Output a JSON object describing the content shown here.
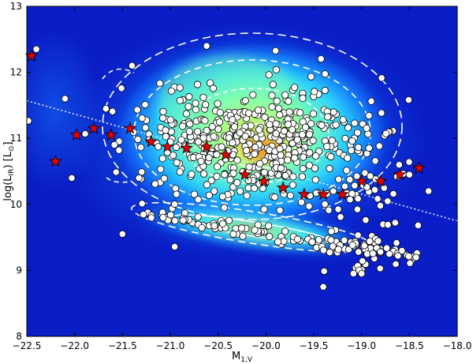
{
  "chart_data": {
    "type": "scatter",
    "title": "",
    "xlabel": "M",
    "xlabel_sub": "1,V",
    "ylabel": "log(L",
    "ylabel_sub": "IR",
    "ylabel_unit": ") [L",
    "ylabel_unit_sub": "⊙",
    "ylabel_close": "]",
    "xlim": [
      -22.5,
      -18.0
    ],
    "ylim": [
      8,
      13
    ],
    "xticks": [
      -22.5,
      -22.0,
      -21.5,
      -21.0,
      -20.5,
      -20.0,
      -19.5,
      -19.0,
      -18.5,
      -18.0
    ],
    "xtick_labels": [
      "−22.5",
      "−22.0",
      "−21.5",
      "−21.0",
      "−20.5",
      "−20.0",
      "−19.5",
      "−19.0",
      "−18.5",
      "−18.0"
    ],
    "yticks": [
      8,
      9,
      10,
      11,
      12,
      13
    ],
    "ytick_labels": [
      "8",
      "9",
      "10",
      "11",
      "12",
      "13"
    ],
    "grid": false,
    "background_color": "#0a1ec8",
    "density_colors": [
      "#0a1ec8",
      "#1478ff",
      "#28d2ff",
      "#7dffb4",
      "#e6ff50",
      "#ff9b1e",
      "#c83c1e"
    ],
    "contour_color": "#ffffff",
    "white_points_color": "#ffffff",
    "star_color": "#e60000",
    "fit_line": {
      "x": [
        -22.5,
        -18.0
      ],
      "y": [
        11.57,
        9.75
      ]
    },
    "stars": [
      {
        "x": -22.45,
        "y": 12.25
      },
      {
        "x": -22.2,
        "y": 10.65
      },
      {
        "x": -21.98,
        "y": 11.05
      },
      {
        "x": -21.8,
        "y": 11.15
      },
      {
        "x": -21.62,
        "y": 11.05
      },
      {
        "x": -21.42,
        "y": 11.15
      },
      {
        "x": -21.2,
        "y": 10.95
      },
      {
        "x": -21.03,
        "y": 10.87
      },
      {
        "x": -20.83,
        "y": 10.85
      },
      {
        "x": -20.62,
        "y": 10.87
      },
      {
        "x": -20.42,
        "y": 10.75
      },
      {
        "x": -20.22,
        "y": 10.45
      },
      {
        "x": -20.02,
        "y": 10.35
      },
      {
        "x": -19.82,
        "y": 10.25
      },
      {
        "x": -19.6,
        "y": 10.15
      },
      {
        "x": -19.4,
        "y": 10.15
      },
      {
        "x": -19.2,
        "y": 10.15
      },
      {
        "x": -19.0,
        "y": 10.35
      },
      {
        "x": -18.8,
        "y": 10.35
      },
      {
        "x": -18.6,
        "y": 10.45
      },
      {
        "x": -18.4,
        "y": 10.55
      }
    ]
  }
}
